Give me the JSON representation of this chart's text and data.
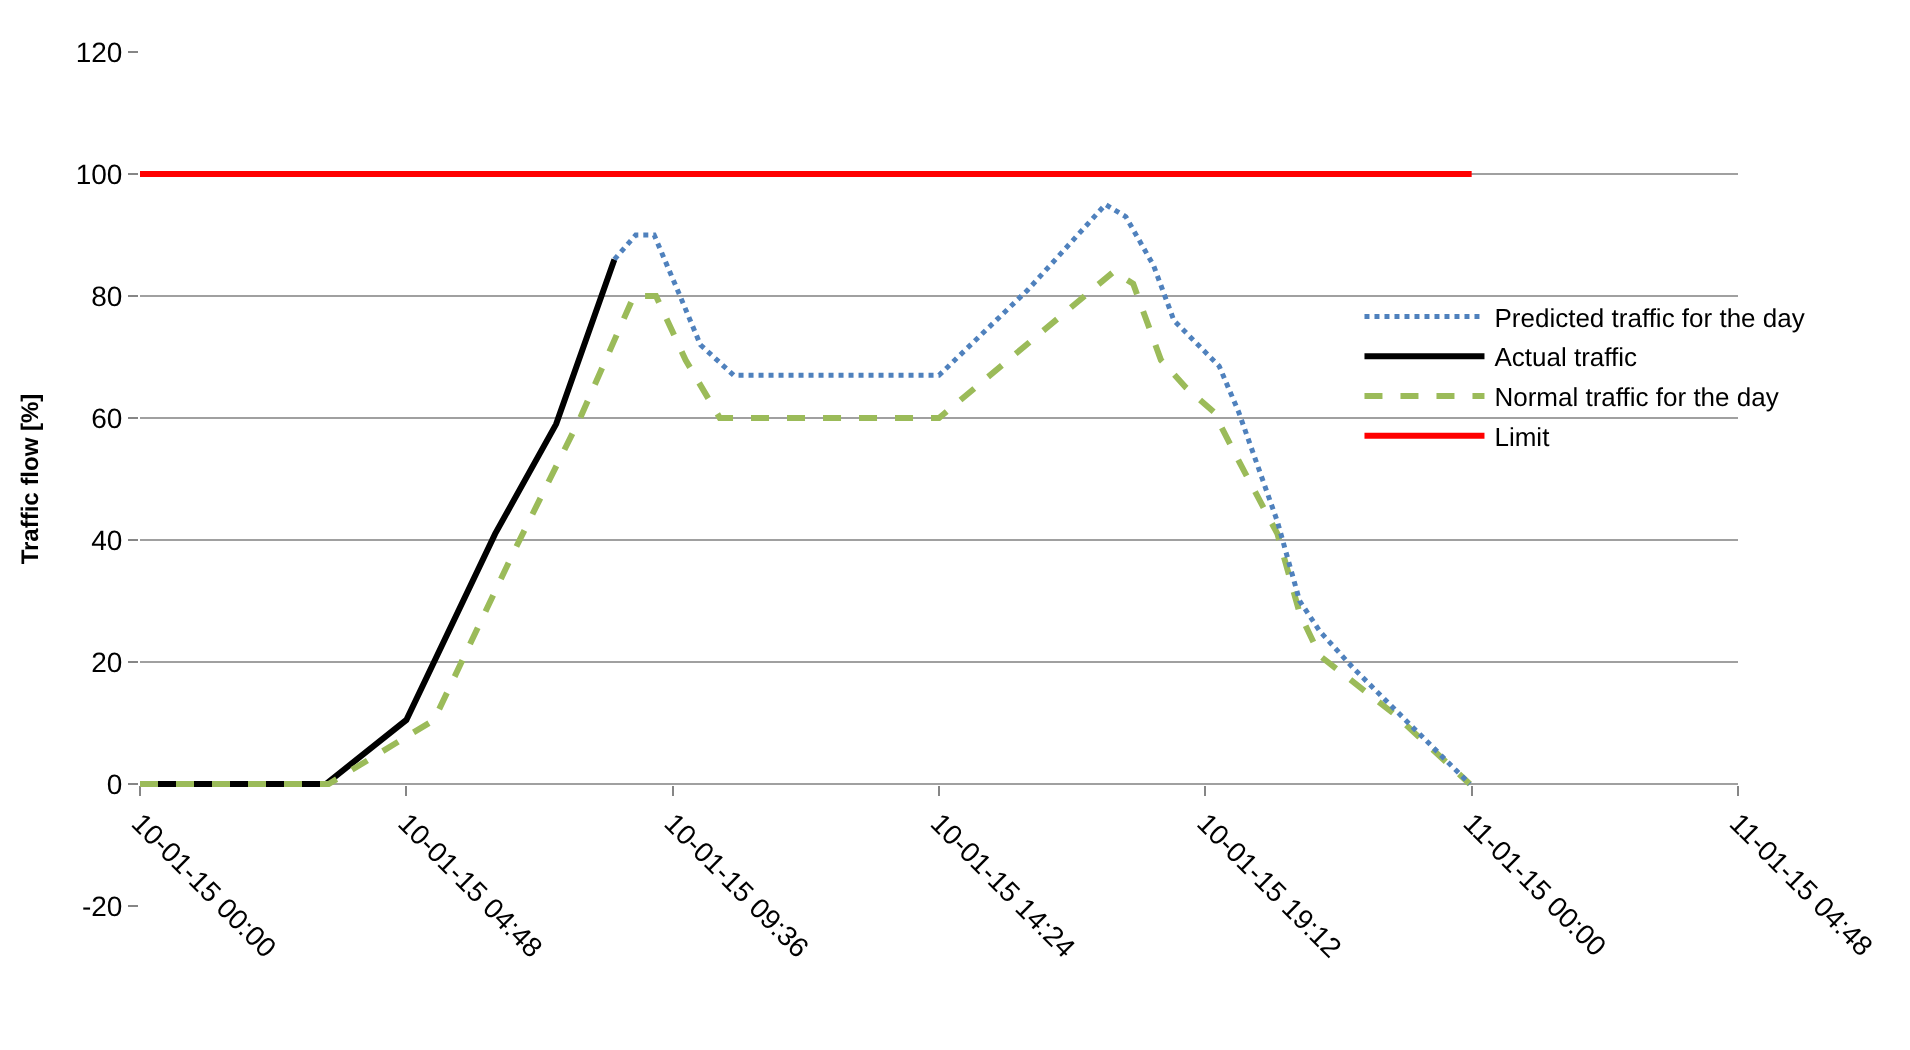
{
  "chart_data": {
    "type": "line",
    "ylabel": "Traffic flow [%]",
    "xlim": [
      "--01-10T00:00",
      "--01-11T04:48"
    ],
    "xticks": [
      {
        "value": "--01-10T00:00",
        "label": "10-01-15 00:00"
      },
      {
        "value": "--01-10T04:48",
        "label": "10-01-15 04:48"
      },
      {
        "value": "--01-10T09:36",
        "label": "10-01-15 09:36"
      },
      {
        "value": "--01-10T14:24",
        "label": "10-01-15 14:24"
      },
      {
        "value": "--01-10T19:12",
        "label": "10-01-15 19:12"
      },
      {
        "value": "--01-11T00:00",
        "label": "11-01-15 00:00"
      },
      {
        "value": "--01-11T04:48",
        "label": "11-01-15 04:48"
      }
    ],
    "ylim": [
      -20,
      120
    ],
    "yticks": [
      -20,
      0,
      20,
      40,
      60,
      80,
      100,
      120
    ],
    "grid": "y",
    "legend": "right",
    "marker": "none",
    "series": [
      {
        "name": "Predicted traffic for the day",
        "color": "#4f81bd",
        "line_style": "dotted",
        "x": [
          "--01-10T08:33",
          "--01-10T08:56",
          "--01-10T09:16",
          "--01-10T09:44",
          "--01-10T10:06",
          "--01-10T10:42",
          "--01-10T14:24",
          "--01-10T16:00",
          "--01-10T17:24",
          "--01-10T17:46",
          "--01-10T18:16",
          "--01-10T18:38",
          "--01-10T19:27",
          "--01-10T19:48",
          "--01-10T20:30",
          "--01-10T20:54",
          "--01-10T21:16",
          "--01-10T21:52",
          "--01-10T23:58"
        ],
        "values": [
          86,
          90,
          90,
          80,
          72,
          67,
          67,
          81,
          95,
          93,
          85,
          76,
          68.5,
          61,
          43,
          30,
          25,
          19,
          0
        ]
      },
      {
        "name": "Actual traffic",
        "color": "#000000",
        "line_style": "solid",
        "x": [
          "--01-10T00:00",
          "--01-10T03:21",
          "--01-10T04:48",
          "--01-10T06:24",
          "--01-10T07:30",
          "--01-10T08:33"
        ],
        "values": [
          0,
          0,
          10.5,
          41,
          59,
          86
        ]
      },
      {
        "name": "Normal traffic for the day",
        "color": "#9bbb59",
        "line_style": "dashed",
        "x": [
          "--01-10T00:00",
          "--01-10T03:24",
          "--01-10T05:18",
          "--01-10T06:44",
          "--01-10T07:56",
          "--01-10T08:54",
          "--01-10T09:18",
          "--01-10T09:50",
          "--01-10T10:27",
          "--01-10T14:24",
          "--01-10T17:33",
          "--01-10T17:54",
          "--01-10T18:24",
          "--01-10T18:51",
          "--01-10T19:21",
          "--01-10T19:48",
          "--01-10T20:30",
          "--01-10T20:54",
          "--01-10T21:16",
          "--01-10T22:36",
          "--01-10T23:58"
        ],
        "values": [
          0,
          0,
          10.5,
          38,
          60,
          80,
          80,
          69.5,
          60,
          60,
          84,
          82,
          69.5,
          65,
          61,
          53,
          41,
          28,
          21,
          11.5,
          0
        ]
      },
      {
        "name": "Limit",
        "color": "#ff0000",
        "line_style": "solid",
        "x": [
          "--01-10T00:00",
          "--01-11T00:00"
        ],
        "values": [
          100,
          100
        ]
      }
    ]
  }
}
